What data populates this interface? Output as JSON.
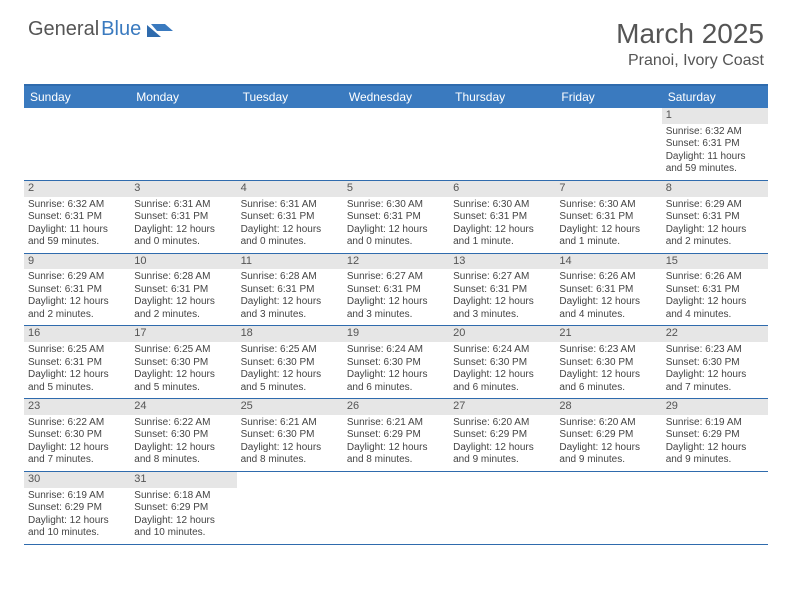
{
  "logo": {
    "text1": "General",
    "text2": "Blue"
  },
  "title": "March 2025",
  "location": "Pranoi, Ivory Coast",
  "colors": {
    "header_bg": "#3a7abf",
    "header_text": "#ffffff",
    "border": "#2f6bad",
    "daynum_bg": "#e6e6e6",
    "text": "#444444"
  },
  "daysOfWeek": [
    "Sunday",
    "Monday",
    "Tuesday",
    "Wednesday",
    "Thursday",
    "Friday",
    "Saturday"
  ],
  "weeks": [
    [
      {
        "n": "",
        "sr": "",
        "ss": "",
        "dl": ""
      },
      {
        "n": "",
        "sr": "",
        "ss": "",
        "dl": ""
      },
      {
        "n": "",
        "sr": "",
        "ss": "",
        "dl": ""
      },
      {
        "n": "",
        "sr": "",
        "ss": "",
        "dl": ""
      },
      {
        "n": "",
        "sr": "",
        "ss": "",
        "dl": ""
      },
      {
        "n": "",
        "sr": "",
        "ss": "",
        "dl": ""
      },
      {
        "n": "1",
        "sr": "Sunrise: 6:32 AM",
        "ss": "Sunset: 6:31 PM",
        "dl": "Daylight: 11 hours and 59 minutes."
      }
    ],
    [
      {
        "n": "2",
        "sr": "Sunrise: 6:32 AM",
        "ss": "Sunset: 6:31 PM",
        "dl": "Daylight: 11 hours and 59 minutes."
      },
      {
        "n": "3",
        "sr": "Sunrise: 6:31 AM",
        "ss": "Sunset: 6:31 PM",
        "dl": "Daylight: 12 hours and 0 minutes."
      },
      {
        "n": "4",
        "sr": "Sunrise: 6:31 AM",
        "ss": "Sunset: 6:31 PM",
        "dl": "Daylight: 12 hours and 0 minutes."
      },
      {
        "n": "5",
        "sr": "Sunrise: 6:30 AM",
        "ss": "Sunset: 6:31 PM",
        "dl": "Daylight: 12 hours and 0 minutes."
      },
      {
        "n": "6",
        "sr": "Sunrise: 6:30 AM",
        "ss": "Sunset: 6:31 PM",
        "dl": "Daylight: 12 hours and 1 minute."
      },
      {
        "n": "7",
        "sr": "Sunrise: 6:30 AM",
        "ss": "Sunset: 6:31 PM",
        "dl": "Daylight: 12 hours and 1 minute."
      },
      {
        "n": "8",
        "sr": "Sunrise: 6:29 AM",
        "ss": "Sunset: 6:31 PM",
        "dl": "Daylight: 12 hours and 2 minutes."
      }
    ],
    [
      {
        "n": "9",
        "sr": "Sunrise: 6:29 AM",
        "ss": "Sunset: 6:31 PM",
        "dl": "Daylight: 12 hours and 2 minutes."
      },
      {
        "n": "10",
        "sr": "Sunrise: 6:28 AM",
        "ss": "Sunset: 6:31 PM",
        "dl": "Daylight: 12 hours and 2 minutes."
      },
      {
        "n": "11",
        "sr": "Sunrise: 6:28 AM",
        "ss": "Sunset: 6:31 PM",
        "dl": "Daylight: 12 hours and 3 minutes."
      },
      {
        "n": "12",
        "sr": "Sunrise: 6:27 AM",
        "ss": "Sunset: 6:31 PM",
        "dl": "Daylight: 12 hours and 3 minutes."
      },
      {
        "n": "13",
        "sr": "Sunrise: 6:27 AM",
        "ss": "Sunset: 6:31 PM",
        "dl": "Daylight: 12 hours and 3 minutes."
      },
      {
        "n": "14",
        "sr": "Sunrise: 6:26 AM",
        "ss": "Sunset: 6:31 PM",
        "dl": "Daylight: 12 hours and 4 minutes."
      },
      {
        "n": "15",
        "sr": "Sunrise: 6:26 AM",
        "ss": "Sunset: 6:31 PM",
        "dl": "Daylight: 12 hours and 4 minutes."
      }
    ],
    [
      {
        "n": "16",
        "sr": "Sunrise: 6:25 AM",
        "ss": "Sunset: 6:31 PM",
        "dl": "Daylight: 12 hours and 5 minutes."
      },
      {
        "n": "17",
        "sr": "Sunrise: 6:25 AM",
        "ss": "Sunset: 6:30 PM",
        "dl": "Daylight: 12 hours and 5 minutes."
      },
      {
        "n": "18",
        "sr": "Sunrise: 6:25 AM",
        "ss": "Sunset: 6:30 PM",
        "dl": "Daylight: 12 hours and 5 minutes."
      },
      {
        "n": "19",
        "sr": "Sunrise: 6:24 AM",
        "ss": "Sunset: 6:30 PM",
        "dl": "Daylight: 12 hours and 6 minutes."
      },
      {
        "n": "20",
        "sr": "Sunrise: 6:24 AM",
        "ss": "Sunset: 6:30 PM",
        "dl": "Daylight: 12 hours and 6 minutes."
      },
      {
        "n": "21",
        "sr": "Sunrise: 6:23 AM",
        "ss": "Sunset: 6:30 PM",
        "dl": "Daylight: 12 hours and 6 minutes."
      },
      {
        "n": "22",
        "sr": "Sunrise: 6:23 AM",
        "ss": "Sunset: 6:30 PM",
        "dl": "Daylight: 12 hours and 7 minutes."
      }
    ],
    [
      {
        "n": "23",
        "sr": "Sunrise: 6:22 AM",
        "ss": "Sunset: 6:30 PM",
        "dl": "Daylight: 12 hours and 7 minutes."
      },
      {
        "n": "24",
        "sr": "Sunrise: 6:22 AM",
        "ss": "Sunset: 6:30 PM",
        "dl": "Daylight: 12 hours and 8 minutes."
      },
      {
        "n": "25",
        "sr": "Sunrise: 6:21 AM",
        "ss": "Sunset: 6:30 PM",
        "dl": "Daylight: 12 hours and 8 minutes."
      },
      {
        "n": "26",
        "sr": "Sunrise: 6:21 AM",
        "ss": "Sunset: 6:29 PM",
        "dl": "Daylight: 12 hours and 8 minutes."
      },
      {
        "n": "27",
        "sr": "Sunrise: 6:20 AM",
        "ss": "Sunset: 6:29 PM",
        "dl": "Daylight: 12 hours and 9 minutes."
      },
      {
        "n": "28",
        "sr": "Sunrise: 6:20 AM",
        "ss": "Sunset: 6:29 PM",
        "dl": "Daylight: 12 hours and 9 minutes."
      },
      {
        "n": "29",
        "sr": "Sunrise: 6:19 AM",
        "ss": "Sunset: 6:29 PM",
        "dl": "Daylight: 12 hours and 9 minutes."
      }
    ],
    [
      {
        "n": "30",
        "sr": "Sunrise: 6:19 AM",
        "ss": "Sunset: 6:29 PM",
        "dl": "Daylight: 12 hours and 10 minutes."
      },
      {
        "n": "31",
        "sr": "Sunrise: 6:18 AM",
        "ss": "Sunset: 6:29 PM",
        "dl": "Daylight: 12 hours and 10 minutes."
      },
      {
        "n": "",
        "sr": "",
        "ss": "",
        "dl": ""
      },
      {
        "n": "",
        "sr": "",
        "ss": "",
        "dl": ""
      },
      {
        "n": "",
        "sr": "",
        "ss": "",
        "dl": ""
      },
      {
        "n": "",
        "sr": "",
        "ss": "",
        "dl": ""
      },
      {
        "n": "",
        "sr": "",
        "ss": "",
        "dl": ""
      }
    ]
  ]
}
